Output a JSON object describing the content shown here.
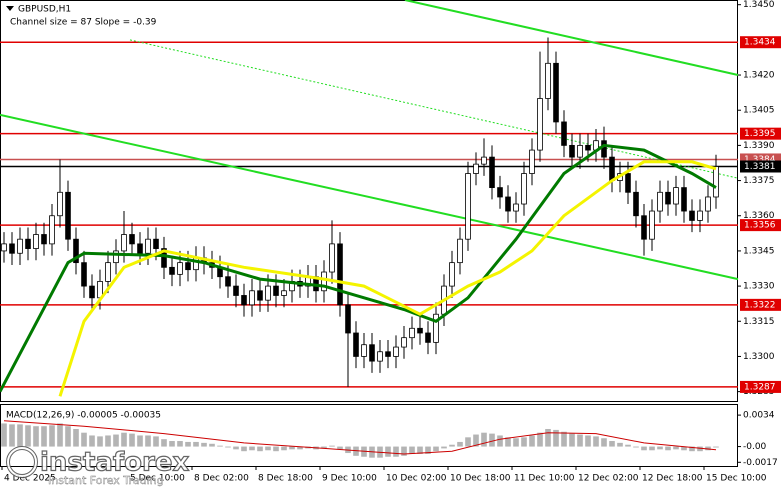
{
  "chart_data": {
    "type": "candlestick",
    "title": "GBPUSD,H1",
    "subtitle": "Channel size = 87 Slope = -0.39",
    "xlim": [
      -0.5,
      91.75
    ],
    "ylim": [
      1.3281,
      1.3452
    ],
    "yticks": [
      {
        "value": 1.345,
        "label": "1.3450"
      },
      {
        "value": 1.342,
        "label": "1.3420"
      },
      1.3405,
      {
        "value": 1.339,
        "label": "1.3390"
      },
      1.3375,
      {
        "value": 1.336,
        "label": "1.3360"
      },
      1.3345,
      {
        "value": 1.333,
        "label": "1.3330"
      },
      1.3315,
      {
        "value": 1.33,
        "label": "1.3300"
      },
      1.3285
    ],
    "xticks": [
      {
        "value": -0.25,
        "label": "4 Dec 2025"
      },
      {
        "value": 15.5,
        "label": "5 Dec 10:00"
      },
      {
        "value": 23.5,
        "label": "8 Dec 02:00"
      },
      {
        "value": 31.5,
        "label": "8 Dec 18:00"
      },
      {
        "value": 39.5,
        "label": "9 Dec 10:00"
      },
      {
        "value": 47.5,
        "label": "10 Dec 02:00"
      },
      {
        "value": 55.5,
        "label": "10 Dec 18:00"
      },
      {
        "value": 63.5,
        "label": "11 Dec 10:00"
      },
      {
        "value": 71.5,
        "label": "12 Dec 02:00"
      },
      {
        "value": 79.5,
        "label": "12 Dec 18:00"
      },
      {
        "value": 87.5,
        "label": "15 Dec 10:00"
      }
    ],
    "open": [
      1.3345,
      1.3348,
      1.3344,
      1.335,
      1.3346,
      1.3352,
      1.3348,
      1.336,
      1.337,
      1.335,
      1.334,
      1.333,
      1.3325,
      1.3332,
      1.334,
      1.3345,
      1.3352,
      1.3348,
      1.3344,
      1.335,
      1.3346,
      1.3338,
      1.3335,
      1.334,
      1.3337,
      1.3342,
      1.334,
      1.3338,
      1.3334,
      1.333,
      1.3326,
      1.3322,
      1.3328,
      1.3324,
      1.333,
      1.3326,
      1.3328,
      1.3332,
      1.333,
      1.3334,
      1.3328,
      1.3336,
      1.3348,
      1.3322,
      1.331,
      1.33,
      1.3305,
      1.3298,
      1.3302,
      1.33,
      1.3304,
      1.3308,
      1.3312,
      1.331,
      1.3306,
      1.3318,
      1.333,
      1.334,
      1.335,
      1.3378,
      1.3382,
      1.3385,
      1.3372,
      1.3368,
      1.3362,
      1.3365,
      1.3378,
      1.3388,
      1.341,
      1.3425,
      1.34,
      1.339,
      1.3385,
      1.339,
      1.3388,
      1.3392,
      1.3385,
      1.3375,
      1.3378,
      1.337,
      1.336,
      1.335,
      1.3362,
      1.337,
      1.3365,
      1.3372,
      1.3362,
      1.3358,
      1.3362,
      1.3368
    ],
    "high": [
      1.3353,
      1.3353,
      1.3355,
      1.3355,
      1.3357,
      1.3357,
      1.3365,
      1.3384,
      1.3375,
      1.3355,
      1.3345,
      1.3335,
      1.3337,
      1.3345,
      1.335,
      1.3362,
      1.3357,
      1.3353,
      1.3355,
      1.3355,
      1.3351,
      1.3343,
      1.3345,
      1.3345,
      1.3347,
      1.3347,
      1.3345,
      1.3343,
      1.3339,
      1.3335,
      1.3331,
      1.3333,
      1.3333,
      1.3335,
      1.3335,
      1.3333,
      1.3337,
      1.3337,
      1.3339,
      1.3339,
      1.3341,
      1.3358,
      1.3353,
      1.3327,
      1.3315,
      1.331,
      1.331,
      1.3307,
      1.3307,
      1.3309,
      1.3313,
      1.3317,
      1.3317,
      1.3315,
      1.3323,
      1.3335,
      1.3345,
      1.3355,
      1.3383,
      1.3387,
      1.3393,
      1.339,
      1.3377,
      1.3373,
      1.337,
      1.3383,
      1.3393,
      1.343,
      1.3436,
      1.343,
      1.3405,
      1.3395,
      1.3395,
      1.3395,
      1.3397,
      1.3398,
      1.339,
      1.3383,
      1.3383,
      1.3375,
      1.3365,
      1.3367,
      1.3375,
      1.3375,
      1.3377,
      1.3377,
      1.3367,
      1.3367,
      1.3373,
      1.3386
    ],
    "low": [
      1.334,
      1.3339,
      1.3339,
      1.3341,
      1.3341,
      1.3343,
      1.3343,
      1.3355,
      1.3345,
      1.3335,
      1.3325,
      1.332,
      1.332,
      1.3327,
      1.3335,
      1.334,
      1.3343,
      1.3339,
      1.3339,
      1.3341,
      1.3333,
      1.333,
      1.333,
      1.3332,
      1.3332,
      1.3335,
      1.3333,
      1.3329,
      1.3325,
      1.3321,
      1.3317,
      1.3317,
      1.3319,
      1.3319,
      1.3321,
      1.3321,
      1.3323,
      1.3325,
      1.3325,
      1.3323,
      1.3323,
      1.3331,
      1.3317,
      1.3287,
      1.3295,
      1.3295,
      1.3293,
      1.3293,
      1.3295,
      1.3295,
      1.3299,
      1.3303,
      1.3305,
      1.3301,
      1.3301,
      1.3313,
      1.3325,
      1.3335,
      1.3345,
      1.3373,
      1.3377,
      1.3367,
      1.3363,
      1.3357,
      1.3357,
      1.336,
      1.3373,
      1.3383,
      1.3405,
      1.3395,
      1.3385,
      1.338,
      1.338,
      1.3383,
      1.3383,
      1.338,
      1.337,
      1.337,
      1.3365,
      1.3355,
      1.3343,
      1.3345,
      1.3357,
      1.336,
      1.336,
      1.3357,
      1.3353,
      1.3353,
      1.3357,
      1.3363
    ],
    "close": [
      1.3348,
      1.3344,
      1.335,
      1.3346,
      1.3352,
      1.3348,
      1.336,
      1.337,
      1.335,
      1.334,
      1.333,
      1.3325,
      1.3332,
      1.334,
      1.3345,
      1.3352,
      1.3348,
      1.3344,
      1.335,
      1.3346,
      1.3338,
      1.3335,
      1.334,
      1.3337,
      1.3342,
      1.334,
      1.3338,
      1.3334,
      1.333,
      1.3326,
      1.3322,
      1.3328,
      1.3324,
      1.333,
      1.3326,
      1.3328,
      1.3332,
      1.333,
      1.3334,
      1.3328,
      1.3336,
      1.3348,
      1.3322,
      1.331,
      1.33,
      1.3305,
      1.3298,
      1.3302,
      1.33,
      1.3304,
      1.3308,
      1.3312,
      1.331,
      1.3306,
      1.3318,
      1.333,
      1.334,
      1.335,
      1.3378,
      1.3382,
      1.3385,
      1.3372,
      1.3368,
      1.3362,
      1.3365,
      1.3378,
      1.3388,
      1.341,
      1.3425,
      1.34,
      1.339,
      1.3385,
      1.339,
      1.3388,
      1.3392,
      1.3385,
      1.3375,
      1.3378,
      1.337,
      1.336,
      1.335,
      1.3362,
      1.337,
      1.3365,
      1.3372,
      1.3362,
      1.3358,
      1.3362,
      1.3368,
      1.3381
    ],
    "moving_averages": [
      {
        "color": "#007a00",
        "x": [
          -0.5,
          8,
          10,
          20,
          25,
          32,
          40,
          50,
          54,
          58,
          64,
          70,
          75,
          80,
          86,
          89
        ],
        "values": [
          1.3285,
          1.334,
          1.3344,
          1.3343,
          1.334,
          1.3333,
          1.333,
          1.332,
          1.3315,
          1.3325,
          1.335,
          1.3378,
          1.339,
          1.3388,
          1.3378,
          1.3372
        ]
      },
      {
        "color": "#f4f400",
        "x": [
          7,
          10,
          15,
          20,
          30,
          40,
          45,
          52,
          58,
          62,
          66,
          70,
          76,
          80,
          86,
          89
        ],
        "values": [
          1.3283,
          1.3315,
          1.3338,
          1.3345,
          1.3338,
          1.3333,
          1.333,
          1.3318,
          1.333,
          1.3336,
          1.3345,
          1.336,
          1.3375,
          1.3383,
          1.3383,
          1.338
        ]
      }
    ],
    "channel_lines": [
      {
        "color": "#22dd22",
        "dash": false,
        "x": [
          50.125,
          91.75
        ],
        "values": [
          1.3452,
          1.342
        ]
      },
      {
        "color": "#22dd22",
        "dash": false,
        "x": [
          -0.5,
          91.75
        ],
        "values": [
          1.3403,
          1.3333
        ]
      },
      {
        "color": "#22dd22",
        "dash": true,
        "x": [
          15.75,
          91.75
        ],
        "values": [
          1.3435,
          1.3376
        ]
      }
    ],
    "levels": [
      {
        "value": 1.3434,
        "color": "#e00000"
      },
      {
        "value": 1.3395,
        "color": "#e00000"
      },
      {
        "value": 1.3384,
        "color": "#c85050"
      },
      {
        "value": 1.3381,
        "color": "#000000"
      },
      {
        "value": 1.3356,
        "color": "#e00000"
      },
      {
        "value": 1.3322,
        "color": "#e00000"
      },
      {
        "value": 1.3287,
        "color": "#e00000"
      }
    ],
    "macd": {
      "label": "MACD(12,26,9) -0.00005 -0.00035",
      "ylim": [
        -0.0021,
        0.0046
      ],
      "yticks": [
        0.0034,
        {
          "value": 0,
          "label": "-0.00"
        },
        -0.0017
      ],
      "histogram_color": "#b4b4b4",
      "histogram": [
        0.0025,
        0.0024,
        0.0024,
        0.0023,
        0.0022,
        0.0022,
        0.0023,
        0.0025,
        0.0022,
        0.0019,
        0.0015,
        0.0012,
        0.0011,
        0.0012,
        0.0013,
        0.0015,
        0.0014,
        0.0012,
        0.0012,
        0.0011,
        0.0008,
        0.0006,
        0.0006,
        0.0005,
        0.0005,
        0.0004,
        0.0003,
        0.0001,
        -0.0001,
        -0.0003,
        -0.0005,
        -0.0004,
        -0.0005,
        -0.0004,
        -0.0005,
        -0.0004,
        -0.0003,
        -0.0003,
        -0.0002,
        -0.0003,
        -0.0002,
        0.0001,
        -0.0003,
        -0.0007,
        -0.001,
        -0.0011,
        -0.0012,
        -0.0012,
        -0.0011,
        -0.0011,
        -0.001,
        -0.0008,
        -0.0008,
        -0.0008,
        -0.0005,
        -0.0002,
        0.0002,
        0.0005,
        0.001,
        0.0013,
        0.0015,
        0.0014,
        0.0012,
        0.001,
        0.0009,
        0.001,
        0.0012,
        0.0015,
        0.0019,
        0.0018,
        0.0016,
        0.0014,
        0.0013,
        0.0012,
        0.0011,
        0.0009,
        0.0006,
        0.0004,
        0.0002,
        -0.0001,
        -0.0004,
        -0.0004,
        -0.0003,
        -0.0004,
        -0.0003,
        -0.0004,
        -0.0005,
        -0.0005,
        -0.0004,
        -0.0001
      ],
      "signal_color": "#cc0000",
      "signal_x": [
        0,
        10,
        20,
        30,
        40,
        50,
        56,
        62,
        68,
        74,
        80,
        89
      ],
      "signal": [
        0.0028,
        0.0022,
        0.0014,
        0.0004,
        -0.0002,
        -0.0008,
        -0.0005,
        0.0008,
        0.0015,
        0.0014,
        0.0004,
        -0.00035
      ]
    },
    "watermark": {
      "brand": "instaforex",
      "tagline": "Instant Forex Trading"
    }
  }
}
